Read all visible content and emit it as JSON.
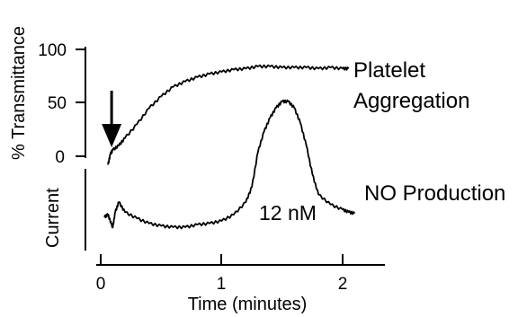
{
  "chart_data": [
    {
      "type": "line",
      "ylabel": "% Transmittance",
      "ylim": [
        0,
        100
      ],
      "yticks": [
        "0",
        "50",
        "100"
      ],
      "xlim": [
        0,
        2.3
      ],
      "series": [
        {
          "name": "Platelet Aggregation",
          "x": [
            0.06,
            0.08,
            0.1,
            0.15,
            0.2,
            0.3,
            0.4,
            0.5,
            0.6,
            0.7,
            0.8,
            0.9,
            1.0,
            1.1,
            1.2,
            1.3,
            1.4,
            1.5,
            1.6,
            1.7,
            1.8,
            1.9,
            2.0,
            2.05
          ],
          "y": [
            -8,
            2,
            6,
            10,
            17,
            30,
            45,
            56,
            65,
            70,
            74,
            77,
            79,
            81,
            82,
            84,
            84,
            83,
            83,
            83,
            82,
            83,
            82,
            82
          ]
        }
      ],
      "annotations": [
        {
          "type": "arrow",
          "label": "",
          "x": 0.09
        }
      ]
    },
    {
      "type": "line",
      "ylabel": "Current",
      "xlabel": "Time (minutes)",
      "xlim": [
        0,
        2.3
      ],
      "xticks": [
        "0",
        "1",
        "2"
      ],
      "series": [
        {
          "name": "NO Production",
          "x": [
            0.03,
            0.06,
            0.09,
            0.1,
            0.12,
            0.15,
            0.2,
            0.3,
            0.4,
            0.5,
            0.6,
            0.7,
            0.8,
            0.9,
            1.0,
            1.1,
            1.2,
            1.25,
            1.3,
            1.35,
            1.4,
            1.45,
            1.5,
            1.55,
            1.6,
            1.65,
            1.7,
            1.75,
            1.8,
            1.9,
            2.0,
            2.05,
            2.1
          ],
          "y": [
            0.08,
            0.1,
            0.02,
            0.0,
            0.12,
            0.2,
            0.12,
            0.07,
            0.03,
            0.01,
            0.0,
            0.0,
            0.02,
            0.03,
            0.05,
            0.1,
            0.2,
            0.32,
            0.6,
            0.76,
            0.87,
            0.95,
            1.0,
            1.0,
            0.95,
            0.83,
            0.65,
            0.42,
            0.26,
            0.18,
            0.14,
            0.12,
            0.11
          ]
        }
      ],
      "annotations": [
        {
          "text": "12 nM"
        }
      ]
    }
  ]
}
